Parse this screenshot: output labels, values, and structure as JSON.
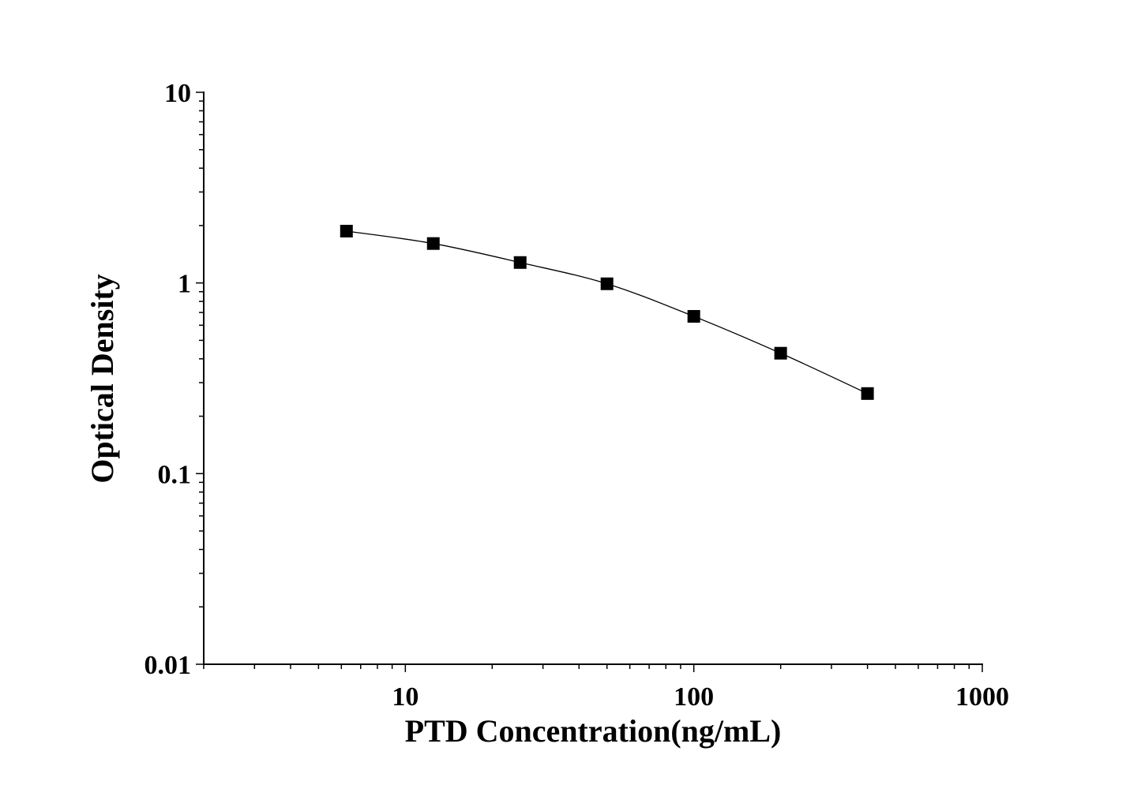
{
  "chart_data": {
    "type": "line",
    "title": "",
    "xlabel": "PTD Concentration(ng/mL)",
    "ylabel": "Optical Density",
    "xscale": "log",
    "yscale": "log",
    "xlim": [
      2,
      1000
    ],
    "ylim": [
      0.01,
      10
    ],
    "xticks": [
      {
        "value": 10,
        "label": "10"
      },
      {
        "value": 100,
        "label": "100"
      },
      {
        "value": 1000,
        "label": "1000"
      }
    ],
    "yticks": [
      {
        "value": 0.01,
        "label": "0.01"
      },
      {
        "value": 0.1,
        "label": "0.1"
      },
      {
        "value": 1,
        "label": "1"
      },
      {
        "value": 10,
        "label": "10"
      }
    ],
    "grid": false,
    "marker": "square",
    "color": "#000000",
    "series": [
      {
        "x": [
          6.25,
          12.5,
          25,
          50,
          100,
          200,
          400
        ],
        "y": [
          1.87,
          1.61,
          1.28,
          0.99,
          0.668,
          0.428,
          0.263
        ]
      }
    ]
  }
}
